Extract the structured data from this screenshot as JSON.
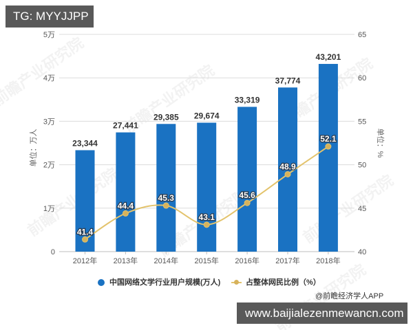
{
  "overlay": {
    "top_left_tag": "TG: MYYJJPP",
    "bottom_right_url": "www.baijialezenmewancn.com"
  },
  "source": "@前瞻经济学人APP",
  "watermark": "前瞻产业研究院",
  "colors": {
    "bar": "#1a72c2",
    "line": "#e3c36c",
    "marker": "#d6b25c",
    "grid": "#dcdcdc",
    "tick_text": "#555555",
    "bar_label": "#333333",
    "line_label_fill": "#ffffff",
    "line_label_stroke": "#2b3a4c",
    "tag_bg": "#595959"
  },
  "chart_data": {
    "type": "bar+line",
    "title": "",
    "categories": [
      "2012年",
      "2013年",
      "2014年",
      "2015年",
      "2016年",
      "2017年",
      "2018年"
    ],
    "series": [
      {
        "name": "中国网络文学行业用户规模(万人)",
        "type": "bar",
        "axis": "left",
        "values": [
          23344,
          27441,
          29385,
          29674,
          33319,
          37774,
          43201
        ],
        "labels": [
          "23,344",
          "27,441",
          "29,385",
          "29,674",
          "33,319",
          "37,774",
          "43,201"
        ]
      },
      {
        "name": "占整体网民比例（%）",
        "type": "line",
        "axis": "right",
        "values": [
          41.4,
          44.4,
          45.3,
          43.1,
          45.6,
          48.9,
          52.1
        ],
        "labels": [
          "41.4",
          "44.4",
          "45.3",
          "43.1",
          "45.6",
          "48.9",
          "52.1"
        ]
      }
    ],
    "left_axis": {
      "label": "单位：万人",
      "range": [
        0,
        50000
      ],
      "ticks": [
        0,
        10000,
        20000,
        30000,
        40000,
        50000
      ],
      "tick_labels": [
        "0",
        "1万",
        "2万",
        "3万",
        "4万",
        "5万"
      ]
    },
    "right_axis": {
      "label": "单位：%",
      "range": [
        40,
        65
      ],
      "ticks": [
        40,
        45,
        50,
        55,
        60,
        65
      ],
      "tick_labels": [
        "40",
        "45",
        "50",
        "55",
        "60",
        "65"
      ]
    },
    "xlabel": "",
    "grid": true,
    "legend_position": "bottom"
  }
}
